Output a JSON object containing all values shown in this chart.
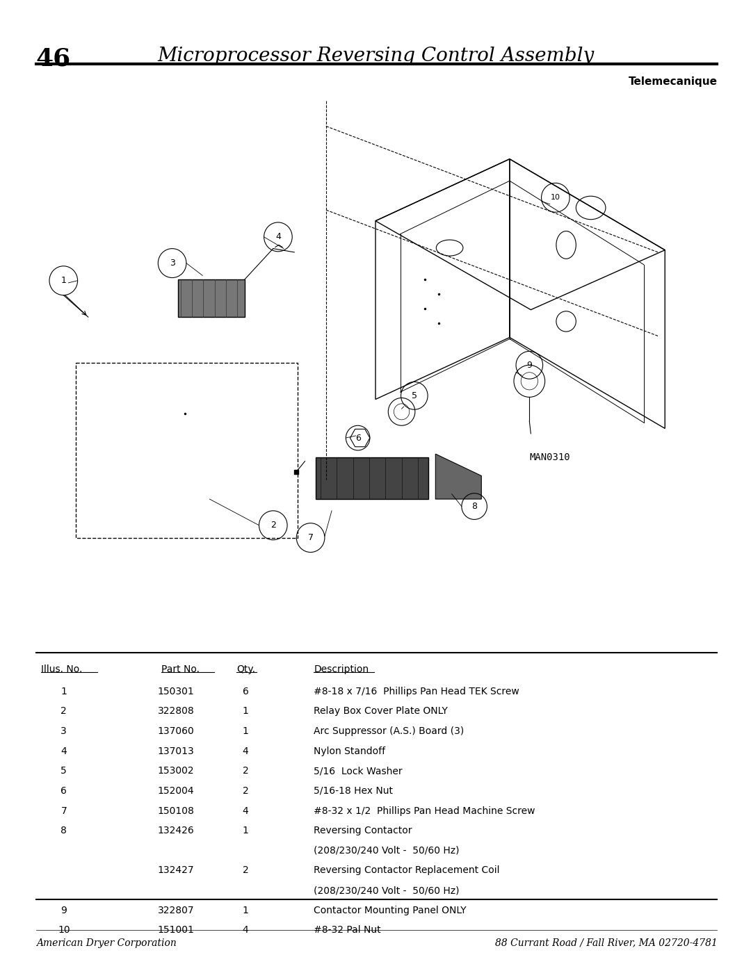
{
  "page_number": "46",
  "title": "Microprocessor Reversing Control Assembly",
  "subtitle": "Telemecanique",
  "parts": [
    {
      "illus": "1",
      "part": "150301",
      "qty": "6",
      "desc": "#8-18 x 7/16  Phillips Pan Head TEK Screw",
      "desc2": ""
    },
    {
      "illus": "2",
      "part": "322808",
      "qty": "1",
      "desc": "Relay Box Cover Plate ONLY",
      "desc2": ""
    },
    {
      "illus": "3",
      "part": "137060",
      "qty": "1",
      "desc": "Arc Suppressor (A.S.) Board (3)",
      "desc2": ""
    },
    {
      "illus": "4",
      "part": "137013",
      "qty": "4",
      "desc": "Nylon Standoff",
      "desc2": ""
    },
    {
      "illus": "5",
      "part": "153002",
      "qty": "2",
      "desc": "5/16  Lock Washer",
      "desc2": ""
    },
    {
      "illus": "6",
      "part": "152004",
      "qty": "2",
      "desc": "5/16-18 Hex Nut",
      "desc2": ""
    },
    {
      "illus": "7",
      "part": "150108",
      "qty": "4",
      "desc": "#8-32 x 1/2  Phillips Pan Head Machine Screw",
      "desc2": ""
    },
    {
      "illus": "8",
      "part": "132426",
      "qty": "1",
      "desc": "Reversing Contactor",
      "desc2": "(208/230/240 Volt -  50/60 Hz)"
    },
    {
      "illus": "",
      "part": "132427",
      "qty": "2",
      "desc": "Reversing Contactor Replacement Coil",
      "desc2": "(208/230/240 Volt -  50/60 Hz)"
    },
    {
      "illus": "9",
      "part": "322807",
      "qty": "1",
      "desc": "Contactor Mounting Panel ONLY",
      "desc2": ""
    },
    {
      "illus": "10",
      "part": "151001",
      "qty": "4",
      "desc": "#8-32 Pal Nut",
      "desc2": ""
    }
  ],
  "table_headers": [
    "Illus. No.",
    "Part No.",
    "Qty.",
    "Description"
  ],
  "footer_left": "American Dryer Corporation",
  "footer_right": "88 Currant Road / Fall River, MA 02720-4781",
  "bg_color": "#ffffff",
  "text_color": "#000000"
}
